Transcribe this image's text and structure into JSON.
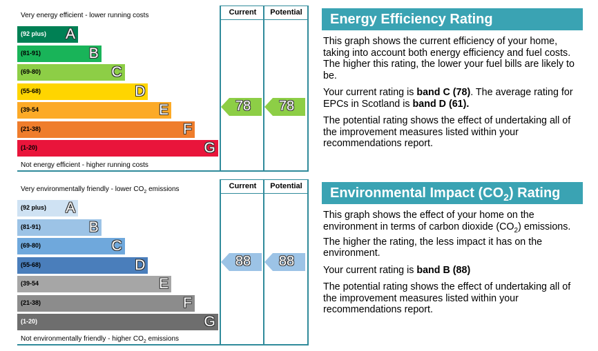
{
  "energy": {
    "top_note": "Very energy efficient - lower running costs",
    "bottom_note": "Not energy efficient - higher running costs",
    "headers": [
      "Current",
      "Potential"
    ],
    "bands": [
      {
        "range": "(92 plus)",
        "letter": "A"
      },
      {
        "range": "(81-91)",
        "letter": "B"
      },
      {
        "range": "(69-80)",
        "letter": "C"
      },
      {
        "range": "(55-68)",
        "letter": "D"
      },
      {
        "range": "(39-54",
        "letter": "E"
      },
      {
        "range": "(21-38)",
        "letter": "F"
      },
      {
        "range": "(1-20)",
        "letter": "G"
      }
    ],
    "current": 78,
    "potential": 78,
    "panel": {
      "title": "Energy Efficiency Rating",
      "paragraphs": [
        [
          {
            "text": "This graph shows the current efficiency of your home, taking into account both energy efficiency and fuel costs. The higher this rating, the lower your fuel bills are likely to be."
          }
        ],
        [
          {
            "text": "Your current rating is "
          },
          {
            "text": "band C (78)",
            "bold": true
          },
          {
            "text": ". The average rating for EPCs in Scotland is "
          },
          {
            "text": "band D (61).",
            "bold": true
          }
        ],
        [
          {
            "text": "The potential rating shows the effect of undertaking all of the improvement measures listed within your recommendations report."
          }
        ]
      ]
    }
  },
  "environment": {
    "top_note": [
      {
        "text": "Very environmentally friendly - lower CO"
      },
      {
        "text": "2",
        "sub": true
      },
      {
        "text": " emissions"
      }
    ],
    "bottom_note": [
      {
        "text": "Not environmentally friendly - higher CO"
      },
      {
        "text": "2",
        "sub": true
      },
      {
        "text": " emissions"
      }
    ],
    "headers": [
      "Current",
      "Potential"
    ],
    "bands": [
      {
        "range": "(92 plus)",
        "letter": "A"
      },
      {
        "range": "(81-91)",
        "letter": "B"
      },
      {
        "range": "(69-80)",
        "letter": "C"
      },
      {
        "range": "(55-68)",
        "letter": "D"
      },
      {
        "range": "(39-54",
        "letter": "E"
      },
      {
        "range": "(21-38)",
        "letter": "F"
      },
      {
        "range": "(1-20)",
        "letter": "G"
      }
    ],
    "current": 88,
    "potential": 88,
    "panel": {
      "title": [
        {
          "text": "Environmental Impact (CO"
        },
        {
          "text": "2",
          "sub": true
        },
        {
          "text": ") Rating"
        }
      ],
      "paragraphs": [
        [
          {
            "text": "This graph shows the effect of your home on the environment in terms of carbon dioxide (CO"
          },
          {
            "text": "2",
            "sub": true
          },
          {
            "text": ") emissions. The higher the rating, the less impact it has on the environment."
          }
        ],
        [
          {
            "text": "Your current rating is "
          },
          {
            "text": "band B (88)",
            "bold": true
          }
        ],
        [
          {
            "text": "The potential rating shows the effect of undertaking all of the improvement measures listed within your recommendations report."
          }
        ]
      ]
    }
  }
}
